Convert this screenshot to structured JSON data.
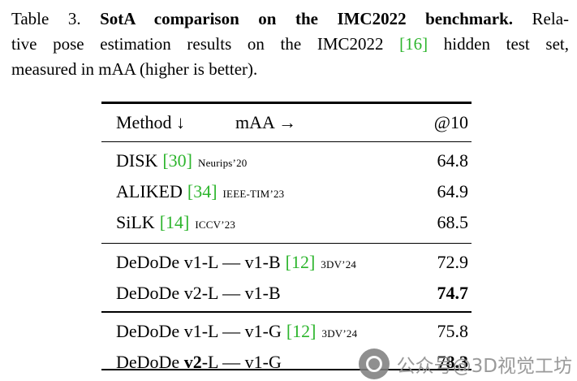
{
  "caption": {
    "l1a": "Table 3. ",
    "l1b": "SotA comparison on the IMC2022 benchmark.",
    "l1c": " Rela-",
    "l2a": "tive pose estimation results on the IMC2022 ",
    "l2b": "[16]",
    "l2c": " hidden test set,",
    "l3": "measured in mAA (higher is better)."
  },
  "table": {
    "header": {
      "method": "Method ↓",
      "maa": "mAA →",
      "at10": "@10"
    },
    "groups": [
      {
        "rows": [
          {
            "parts": [
              {
                "t": "DISK",
                "b": false
              }
            ],
            "cite": "[30]",
            "venue": "Neurips’20",
            "score": "64.8",
            "score_bold": false
          },
          {
            "parts": [
              {
                "t": "ALIKED",
                "b": false
              }
            ],
            "cite": "[34]",
            "venue": "IEEE-TIM’23",
            "score": "64.9",
            "score_bold": false
          },
          {
            "parts": [
              {
                "t": "SiLK",
                "b": false
              }
            ],
            "cite": "[14]",
            "venue": "ICCV’23",
            "score": "68.5",
            "score_bold": false
          }
        ]
      },
      {
        "rows": [
          {
            "parts": [
              {
                "t": "DeDoDe v1-L — v1-B",
                "b": false
              }
            ],
            "cite": "[12]",
            "venue": "3DV’24",
            "score": "72.9",
            "score_bold": false
          },
          {
            "parts": [
              {
                "t": "DeDoDe v2-L — v1-B",
                "b": false
              }
            ],
            "cite": "",
            "venue": "",
            "score": "74.7",
            "score_bold": true
          }
        ]
      },
      {
        "rows": [
          {
            "parts": [
              {
                "t": "DeDoDe v1-L — v1-G",
                "b": false
              }
            ],
            "cite": "[12]",
            "venue": "3DV’24",
            "score": "75.8",
            "score_bold": false
          },
          {
            "parts": [
              {
                "t": "DeDoDe ",
                "b": false
              },
              {
                "t": "v2",
                "b": true
              },
              {
                "t": "-L — v1-G",
                "b": false
              }
            ],
            "cite": "",
            "venue": "",
            "score": "78.3",
            "score_bold": true
          }
        ]
      }
    ]
  },
  "watermark": {
    "text": "公众号@3D视觉工坊"
  },
  "colors": {
    "citation_green": "#2db52d",
    "rule_black": "#000000",
    "watermark_gray": "#8c8c8c"
  }
}
